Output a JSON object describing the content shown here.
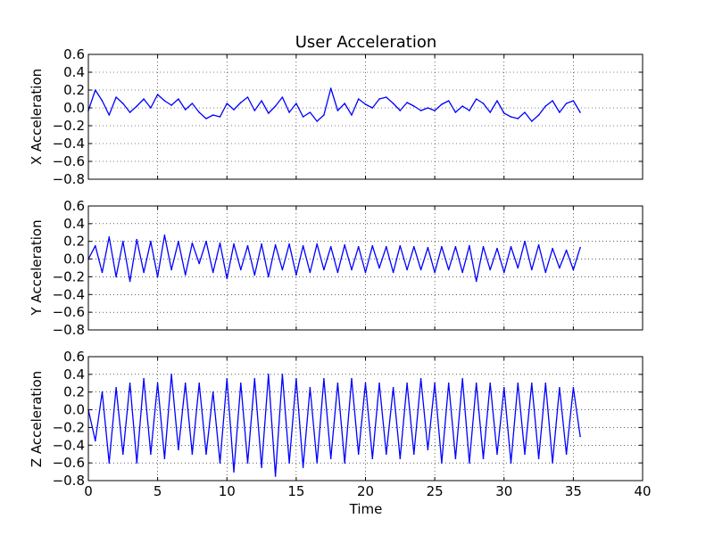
{
  "figure": {
    "title": "User Acceleration",
    "xlabel": "Time"
  },
  "chart_data": [
    {
      "type": "line",
      "title": "User Acceleration",
      "xlabel": "",
      "ylabel": "X Acceleration",
      "xlim": [
        0,
        40
      ],
      "ylim": [
        -0.8,
        0.6
      ],
      "xticks": [
        0,
        5,
        10,
        15,
        20,
        25,
        30,
        35,
        40
      ],
      "yticks": [
        -0.8,
        -0.6,
        -0.4,
        -0.2,
        0.0,
        0.2,
        0.4,
        0.6
      ],
      "grid": true,
      "line_color": "#0000ff",
      "series": [
        {
          "x": [
            0,
            0.5,
            1,
            1.5,
            2,
            2.5,
            3,
            3.5,
            4,
            4.5,
            5,
            5.5,
            6,
            6.5,
            7,
            7.5,
            8,
            8.5,
            9,
            9.5,
            10,
            10.5,
            11,
            11.5,
            12,
            12.5,
            13,
            13.5,
            14,
            14.5,
            15,
            15.5,
            16,
            16.5,
            17,
            17.5,
            18,
            18.5,
            19,
            19.5,
            20,
            20.5,
            21,
            21.5,
            22,
            22.5,
            23,
            23.5,
            24,
            24.5,
            25,
            25.5,
            26,
            26.5,
            27,
            27.5,
            28,
            28.5,
            29,
            29.5,
            30,
            30.5,
            31,
            31.5,
            32,
            32.5,
            33,
            33.5,
            34,
            34.5,
            35,
            35.5
          ],
          "values": [
            -0.03,
            0.2,
            0.08,
            -0.08,
            0.12,
            0.05,
            -0.05,
            0.02,
            0.1,
            0.0,
            0.15,
            0.08,
            0.03,
            0.1,
            -0.02,
            0.05,
            -0.05,
            -0.12,
            -0.08,
            -0.1,
            0.05,
            -0.02,
            0.06,
            0.12,
            -0.03,
            0.08,
            -0.06,
            0.02,
            0.12,
            -0.05,
            0.05,
            -0.1,
            -0.05,
            -0.15,
            -0.08,
            0.22,
            -0.03,
            0.05,
            -0.08,
            0.1,
            0.04,
            0.0,
            0.1,
            0.12,
            0.05,
            -0.03,
            0.06,
            0.02,
            -0.03,
            0.0,
            -0.03,
            0.04,
            0.08,
            -0.05,
            0.02,
            -0.03,
            0.1,
            0.05,
            -0.05,
            0.08,
            -0.06,
            -0.1,
            -0.12,
            -0.05,
            -0.15,
            -0.08,
            0.02,
            0.08,
            -0.05,
            0.05,
            0.08,
            -0.05
          ]
        }
      ]
    },
    {
      "type": "line",
      "title": "",
      "xlabel": "",
      "ylabel": "Y Acceleration",
      "xlim": [
        0,
        40
      ],
      "ylim": [
        -0.8,
        0.6
      ],
      "xticks": [
        0,
        5,
        10,
        15,
        20,
        25,
        30,
        35,
        40
      ],
      "yticks": [
        -0.8,
        -0.6,
        -0.4,
        -0.2,
        0.0,
        0.2,
        0.4,
        0.6
      ],
      "grid": true,
      "line_color": "#0000ff",
      "series": [
        {
          "x": [
            0,
            0.5,
            1,
            1.5,
            2,
            2.5,
            3,
            3.5,
            4,
            4.5,
            5,
            5.5,
            6,
            6.5,
            7,
            7.5,
            8,
            8.5,
            9,
            9.5,
            10,
            10.5,
            11,
            11.5,
            12,
            12.5,
            13,
            13.5,
            14,
            14.5,
            15,
            15.5,
            16,
            16.5,
            17,
            17.5,
            18,
            18.5,
            19,
            19.5,
            20,
            20.5,
            21,
            21.5,
            22,
            22.5,
            23,
            23.5,
            24,
            24.5,
            25,
            25.5,
            26,
            26.5,
            27,
            27.5,
            28,
            28.5,
            29,
            29.5,
            30,
            30.5,
            31,
            31.5,
            32,
            32.5,
            33,
            33.5,
            34,
            34.5,
            35,
            35.5
          ],
          "values": [
            0.0,
            0.15,
            -0.15,
            0.25,
            -0.2,
            0.2,
            -0.25,
            0.22,
            -0.15,
            0.2,
            -0.2,
            0.27,
            -0.12,
            0.2,
            -0.18,
            0.18,
            -0.05,
            0.2,
            -0.15,
            0.18,
            -0.22,
            0.17,
            -0.12,
            0.15,
            -0.18,
            0.17,
            -0.2,
            0.16,
            -0.12,
            0.17,
            -0.18,
            0.15,
            -0.15,
            0.17,
            -0.12,
            0.14,
            -0.15,
            0.16,
            -0.12,
            0.14,
            -0.15,
            0.15,
            -0.1,
            0.14,
            -0.15,
            0.15,
            -0.12,
            0.14,
            -0.12,
            0.13,
            -0.15,
            0.14,
            -0.12,
            0.14,
            -0.15,
            0.15,
            -0.25,
            0.14,
            -0.12,
            0.12,
            -0.15,
            0.14,
            -0.1,
            0.2,
            -0.12,
            0.16,
            -0.15,
            0.12,
            -0.1,
            0.1,
            -0.12,
            0.13
          ]
        }
      ]
    },
    {
      "type": "line",
      "title": "",
      "xlabel": "Time",
      "ylabel": "Z Acceleration",
      "xlim": [
        0,
        40
      ],
      "ylim": [
        -0.8,
        0.6
      ],
      "xticks": [
        0,
        5,
        10,
        15,
        20,
        25,
        30,
        35,
        40
      ],
      "yticks": [
        -0.8,
        -0.6,
        -0.4,
        -0.2,
        0.0,
        0.2,
        0.4,
        0.6
      ],
      "grid": true,
      "line_color": "#0000ff",
      "series": [
        {
          "x": [
            0,
            0.5,
            1,
            1.5,
            2,
            2.5,
            3,
            3.5,
            4,
            4.5,
            5,
            5.5,
            6,
            6.5,
            7,
            7.5,
            8,
            8.5,
            9,
            9.5,
            10,
            10.5,
            11,
            11.5,
            12,
            12.5,
            13,
            13.5,
            14,
            14.5,
            15,
            15.5,
            16,
            16.5,
            17,
            17.5,
            18,
            18.5,
            19,
            19.5,
            20,
            20.5,
            21,
            21.5,
            22,
            22.5,
            23,
            23.5,
            24,
            24.5,
            25,
            25.5,
            26,
            26.5,
            27,
            27.5,
            28,
            28.5,
            29,
            29.5,
            30,
            30.5,
            31,
            31.5,
            32,
            32.5,
            33,
            33.5,
            34,
            34.5,
            35,
            35.5
          ],
          "values": [
            0.0,
            -0.35,
            0.2,
            -0.6,
            0.25,
            -0.5,
            0.3,
            -0.6,
            0.35,
            -0.5,
            0.3,
            -0.55,
            0.4,
            -0.45,
            0.3,
            -0.5,
            0.3,
            -0.5,
            0.2,
            -0.6,
            0.35,
            -0.7,
            0.3,
            -0.6,
            0.35,
            -0.65,
            0.4,
            -0.75,
            0.4,
            -0.6,
            0.35,
            -0.65,
            0.25,
            -0.6,
            0.35,
            -0.55,
            0.3,
            -0.6,
            0.35,
            -0.5,
            0.3,
            -0.55,
            0.3,
            -0.5,
            0.25,
            -0.55,
            0.3,
            -0.5,
            0.35,
            -0.45,
            0.3,
            -0.6,
            0.3,
            -0.55,
            0.35,
            -0.6,
            0.3,
            -0.55,
            0.3,
            -0.5,
            0.25,
            -0.6,
            0.3,
            -0.5,
            0.3,
            -0.55,
            0.3,
            -0.6,
            0.25,
            -0.5,
            0.25,
            -0.3
          ]
        }
      ]
    }
  ]
}
